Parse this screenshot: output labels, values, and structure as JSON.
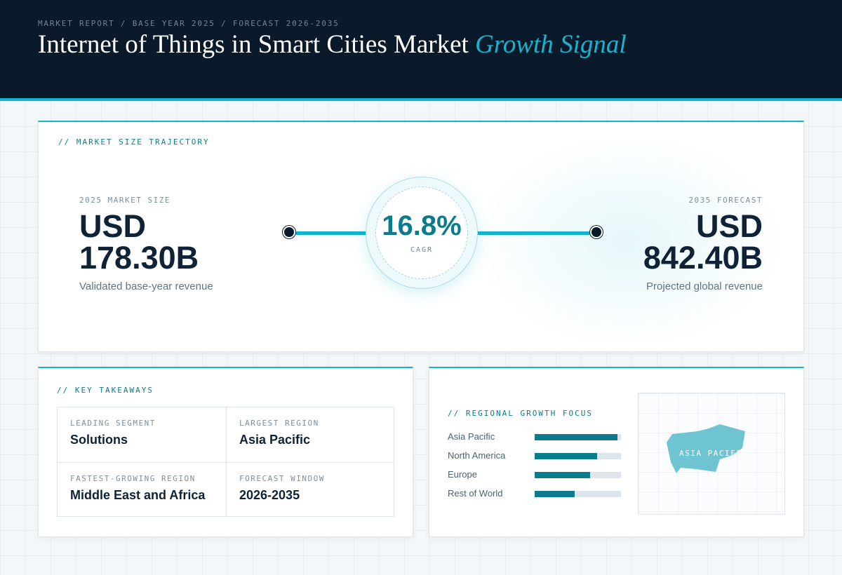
{
  "header": {
    "eyebrow": "MARKET REPORT / BASE YEAR 2025 / FORECAST 2026-2035",
    "title_main": "Internet of Things in Smart Cities Market",
    "title_accent": "Growth Signal"
  },
  "trajectory": {
    "label": "// MARKET SIZE TRAJECTORY",
    "start": {
      "eyebrow": "2025 MARKET SIZE",
      "value": "USD\n178.30B",
      "caption": "Validated base-year revenue"
    },
    "cagr": {
      "value": "16.8%",
      "label": "CAGR"
    },
    "end": {
      "eyebrow": "2035 FORECAST",
      "value": "USD\n842.40B",
      "caption": "Projected global revenue"
    }
  },
  "takeaways": {
    "label": "// KEY TAKEAWAYS",
    "items": [
      {
        "head": "LEADING SEGMENT",
        "value": "Solutions"
      },
      {
        "head": "LARGEST REGION",
        "value": "Asia Pacific"
      },
      {
        "head": "FASTEST-GROWING REGION",
        "value": "Middle East and Africa"
      },
      {
        "head": "FORECAST WINDOW",
        "value": "2026-2035"
      }
    ]
  },
  "regional": {
    "label": "// REGIONAL GROWTH FOCUS",
    "map_label": "ASIA PACIFIC",
    "colors": {
      "fill": "#0c7b8c",
      "track": "#dde6ec",
      "map": "#6fc4d1"
    }
  },
  "chart_data": {
    "type": "bar",
    "orientation": "horizontal",
    "categories": [
      "Asia Pacific",
      "North America",
      "Europe",
      "Rest of World"
    ],
    "values": [
      0.96,
      0.72,
      0.64,
      0.46
    ],
    "xlim": [
      0,
      1
    ]
  }
}
